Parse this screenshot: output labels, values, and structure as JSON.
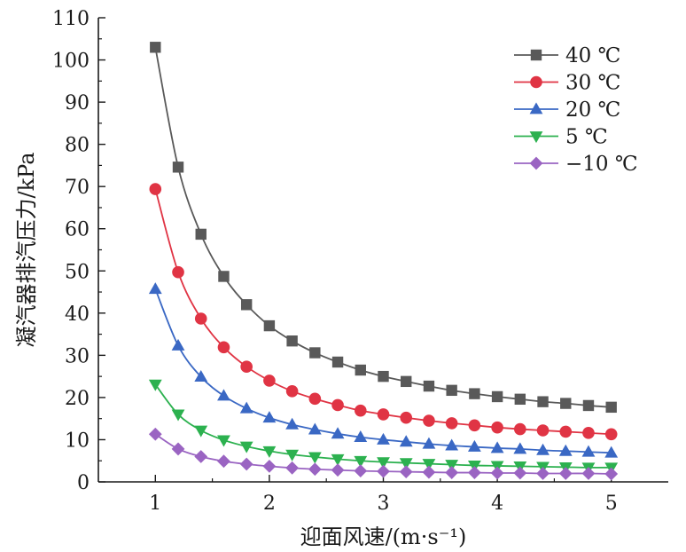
{
  "chart_data": {
    "type": "line",
    "title": "",
    "xlabel": "迎面风速/(m·s⁻¹)",
    "ylabel": "凝汽器排汽压力/kPa",
    "xlim": [
      0.5,
      5.5
    ],
    "ylim": [
      0,
      110
    ],
    "xticks": [
      1,
      2,
      3,
      4,
      5
    ],
    "yticks": [
      0,
      10,
      20,
      30,
      40,
      50,
      60,
      70,
      80,
      90,
      100,
      110
    ],
    "grid": false,
    "legend_position": "top-right",
    "x": [
      1.0,
      1.2,
      1.4,
      1.6,
      1.8,
      2.0,
      2.2,
      2.4,
      2.6,
      2.8,
      3.0,
      3.2,
      3.4,
      3.6,
      3.8,
      4.0,
      4.2,
      4.4,
      4.6,
      4.8,
      5.0
    ],
    "series": [
      {
        "name": "40 ℃",
        "color": "#595959",
        "marker": "square",
        "values": [
          103.0,
          74.6,
          58.7,
          48.7,
          42.0,
          37.0,
          33.4,
          30.6,
          28.4,
          26.5,
          25.0,
          23.8,
          22.7,
          21.7,
          20.9,
          20.2,
          19.6,
          19.0,
          18.6,
          18.1,
          17.7
        ]
      },
      {
        "name": "30 ℃",
        "color": "#e03444",
        "marker": "circle",
        "values": [
          69.4,
          49.7,
          38.7,
          31.9,
          27.3,
          24.0,
          21.5,
          19.7,
          18.2,
          16.9,
          16.0,
          15.2,
          14.5,
          13.9,
          13.4,
          12.9,
          12.5,
          12.2,
          11.9,
          11.6,
          11.3
        ]
      },
      {
        "name": "20 ℃",
        "color": "#3a68c4",
        "marker": "triangle-up",
        "values": [
          45.7,
          32.3,
          24.9,
          20.4,
          17.4,
          15.2,
          13.6,
          12.4,
          11.4,
          10.6,
          10.0,
          9.5,
          9.0,
          8.6,
          8.3,
          8.0,
          7.8,
          7.5,
          7.3,
          7.1,
          6.9
        ]
      },
      {
        "name": "5 ℃",
        "color": "#2cb14f",
        "marker": "triangle-down",
        "values": [
          23.1,
          16.0,
          12.2,
          9.9,
          8.4,
          7.3,
          6.5,
          5.9,
          5.4,
          5.0,
          4.7,
          4.5,
          4.3,
          4.1,
          3.9,
          3.8,
          3.7,
          3.6,
          3.5,
          3.4,
          3.4
        ]
      },
      {
        "name": "−10 ℃",
        "color": "#9a64c2",
        "marker": "diamond",
        "values": [
          11.3,
          7.8,
          6.0,
          4.9,
          4.2,
          3.7,
          3.3,
          3.0,
          2.8,
          2.6,
          2.5,
          2.4,
          2.3,
          2.2,
          2.2,
          2.1,
          2.1,
          2.0,
          2.0,
          2.0,
          1.9
        ]
      }
    ]
  }
}
